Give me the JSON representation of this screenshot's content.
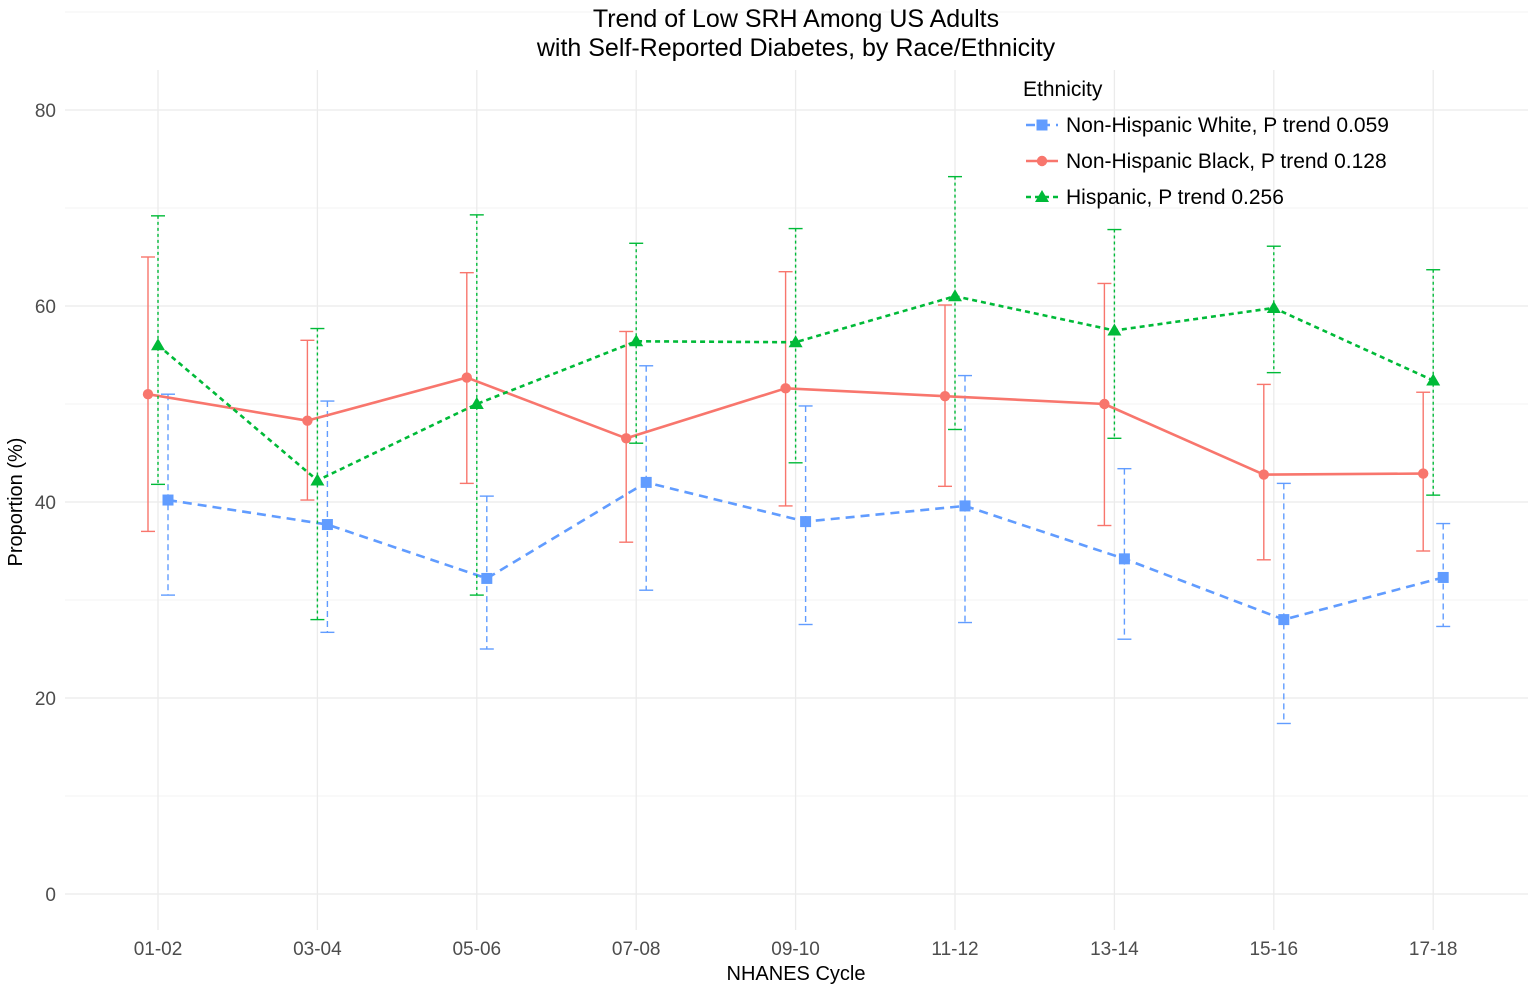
{
  "chart_data": {
    "type": "line",
    "title": [
      "Trend of Low SRH Among US Adults",
      "with Self-Reported Diabetes, by Race/Ethnicity"
    ],
    "xlabel": "NHANES Cycle",
    "ylabel": "Proportion (%)",
    "categories": [
      "01-02",
      "03-04",
      "05-06",
      "07-08",
      "09-10",
      "11-12",
      "13-14",
      "15-16",
      "17-18"
    ],
    "ylim": [
      0,
      80
    ],
    "yticks": [
      "0",
      "20",
      "40",
      "60",
      "80"
    ],
    "grid": true,
    "legend": {
      "title": "Ethnicity",
      "placement": "top-right"
    },
    "series": [
      {
        "name": "Non-Hispanic White, P trend 0.059",
        "color": "#619CFF",
        "marker": "square",
        "line": "dashed",
        "values": [
          40.2,
          37.7,
          32.2,
          42.0,
          38.0,
          39.6,
          34.2,
          28.0,
          32.3
        ],
        "lower": [
          30.5,
          26.7,
          25.0,
          31.0,
          27.5,
          27.7,
          26.0,
          17.4,
          27.3
        ],
        "upper": [
          51.0,
          50.3,
          40.6,
          53.9,
          49.8,
          52.9,
          43.4,
          41.9,
          37.8
        ]
      },
      {
        "name": "Non-Hispanic Black, P trend 0.128",
        "color": "#F8766D",
        "marker": "circle",
        "line": "solid",
        "values": [
          51.0,
          48.3,
          52.7,
          46.5,
          51.6,
          50.8,
          50.0,
          42.8,
          42.9
        ],
        "lower": [
          37.0,
          40.2,
          41.9,
          35.9,
          39.6,
          41.6,
          37.6,
          34.1,
          35.0
        ],
        "upper": [
          65.0,
          56.5,
          63.4,
          57.4,
          63.5,
          60.1,
          62.3,
          52.0,
          51.2
        ]
      },
      {
        "name": "Hispanic, P trend 0.256",
        "color": "#00BA38",
        "marker": "triangle",
        "line": "dotted",
        "values": [
          56.0,
          42.2,
          50.0,
          56.4,
          56.3,
          61.0,
          57.5,
          59.8,
          52.4
        ],
        "lower": [
          41.8,
          28.0,
          30.5,
          46.0,
          44.0,
          47.4,
          46.5,
          53.2,
          40.7
        ],
        "upper": [
          69.2,
          57.7,
          69.3,
          66.4,
          67.9,
          73.2,
          67.8,
          66.1,
          63.7
        ]
      }
    ]
  }
}
